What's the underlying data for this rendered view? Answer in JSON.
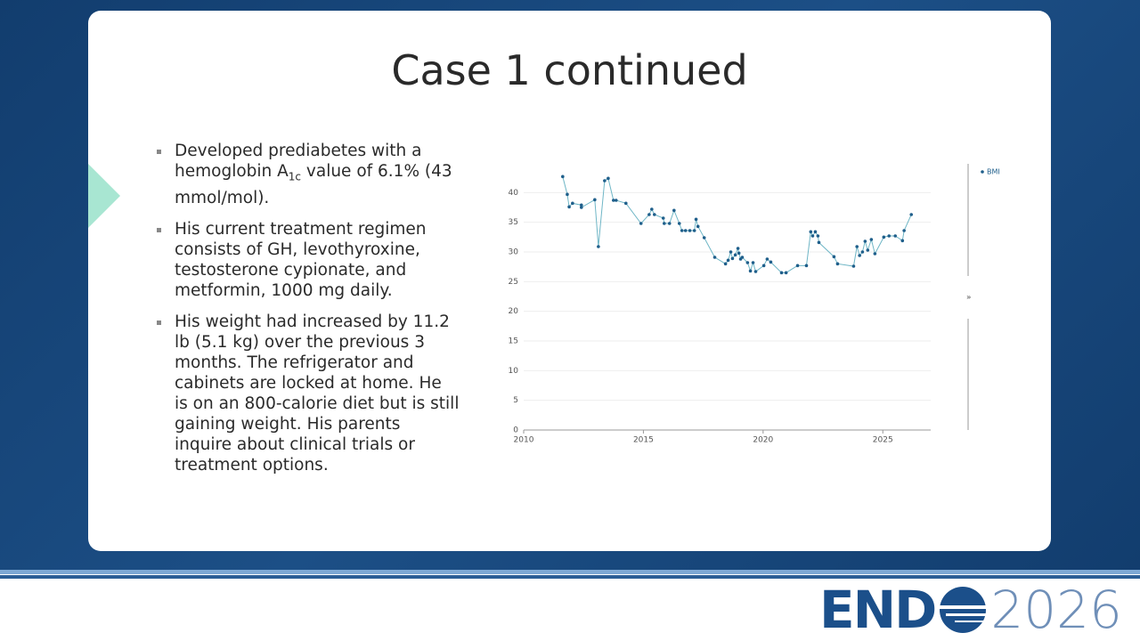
{
  "slide": {
    "title": "Case 1 continued",
    "bullets": [
      {
        "parts": [
          "Developed prediabetes with a hemoglobin A",
          "1c",
          " value of 6.1% (43 mmol/mol)."
        ]
      },
      {
        "parts": [
          "His current treatment regimen consists of GH, levothyroxine, testosterone cypionate, and metformin, 1000 mg daily."
        ]
      },
      {
        "parts": [
          "His weight had increased by 11.2 lb (5.1 kg) over the previous 3 months. The refrigerator and cabinets are locked at home. He is on an 800-calorie diet but is still gaining weight. His parents inquire about clinical trials or treatment options."
        ]
      }
    ]
  },
  "chart_data": {
    "type": "line",
    "x": [
      2011.63,
      2011.82,
      2011.9,
      2012.04,
      2012.41,
      2012.41,
      2012.97,
      2013.12,
      2013.38,
      2013.53,
      2013.75,
      2013.86,
      2014.27,
      2014.9,
      2015.24,
      2015.35,
      2015.46,
      2015.83,
      2015.87,
      2016.09,
      2016.28,
      2016.5,
      2016.61,
      2016.76,
      2016.94,
      2017.13,
      2017.2,
      2017.28,
      2017.54,
      2017.98,
      2018.43,
      2018.54,
      2018.65,
      2018.72,
      2018.84,
      2018.95,
      2018.99,
      2019.06,
      2019.13,
      2019.35,
      2019.47,
      2019.58,
      2019.69,
      2020.03,
      2020.17,
      2020.32,
      2020.77,
      2020.96,
      2021.44,
      2021.81,
      2021.99,
      2022.07,
      2022.18,
      2022.29,
      2022.33,
      2022.96,
      2023.11,
      2023.78,
      2023.92,
      2024.03,
      2024.15,
      2024.26,
      2024.37,
      2024.52,
      2024.67,
      2025.04,
      2025.26,
      2025.52,
      2025.82,
      2025.89,
      2026.19
    ],
    "series": [
      {
        "name": "BMI",
        "color": "#1f5f8b",
        "values": [
          42.7,
          39.7,
          37.6,
          38.2,
          37.9,
          37.5,
          38.8,
          30.9,
          42.0,
          42.4,
          38.7,
          38.7,
          38.2,
          34.8,
          36.3,
          37.2,
          36.3,
          35.7,
          34.8,
          34.8,
          37.0,
          34.8,
          33.6,
          33.6,
          33.6,
          33.6,
          35.5,
          34.3,
          32.4,
          29.1,
          28.0,
          28.6,
          30.0,
          28.9,
          29.5,
          30.6,
          29.8,
          28.8,
          29.1,
          28.2,
          26.8,
          28.2,
          26.7,
          27.7,
          28.8,
          28.3,
          26.5,
          26.5,
          27.7,
          27.7,
          33.4,
          32.7,
          33.4,
          32.7,
          31.6,
          29.2,
          28.0,
          27.6,
          30.9,
          29.4,
          30.0,
          31.8,
          30.3,
          32.1,
          29.7,
          32.5,
          32.7,
          32.7,
          31.9,
          33.6,
          36.3
        ]
      }
    ],
    "xlim": [
      2010,
      2027
    ],
    "xticks": [
      2010,
      2015,
      2020,
      2025
    ],
    "ylim": [
      0,
      45
    ],
    "yticks": [
      0,
      5,
      10,
      15,
      20,
      25,
      30,
      35,
      40
    ],
    "grid": true,
    "legend": "top-right"
  },
  "logo": {
    "left": "END",
    "right": "2026"
  }
}
